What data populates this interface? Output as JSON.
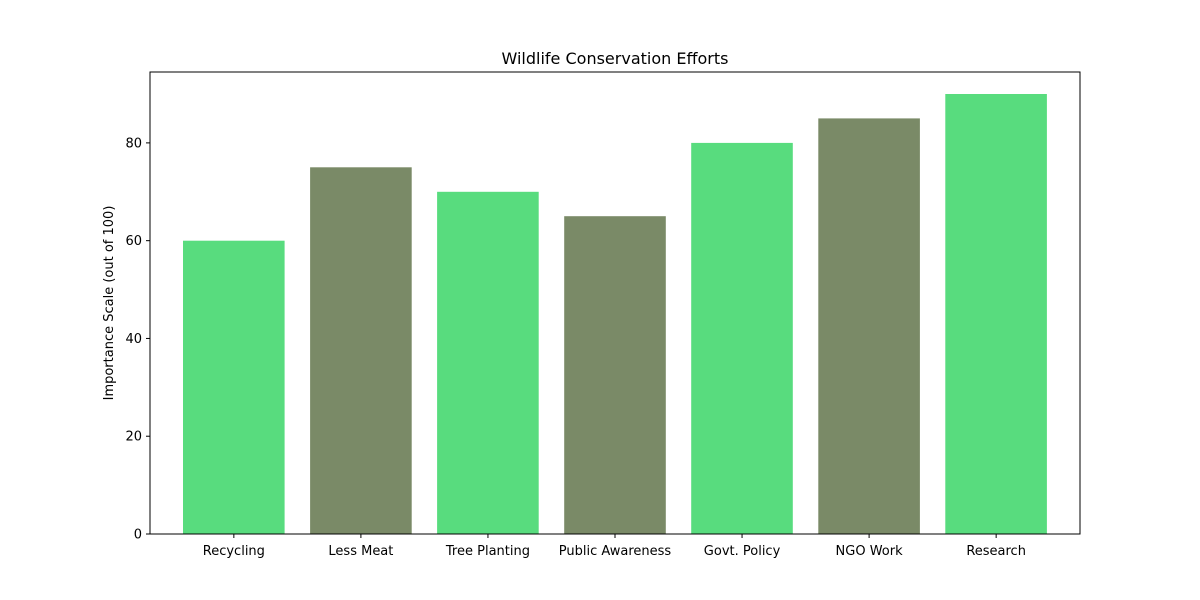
{
  "chart_data": {
    "type": "bar",
    "title": "Wildlife Conservation Efforts",
    "xlabel": "",
    "ylabel": "Importance Scale (out of 100)",
    "categories": [
      "Recycling",
      "Less Meat",
      "Tree Planting",
      "Public Awareness",
      "Govt. Policy",
      "NGO Work",
      "Research"
    ],
    "values": [
      60,
      75,
      70,
      65,
      80,
      85,
      90
    ],
    "colors": [
      "#58dc7e",
      "#7a8a67",
      "#58dc7e",
      "#7a8a67",
      "#58dc7e",
      "#7a8a67",
      "#58dc7e"
    ],
    "yticks": [
      0,
      20,
      40,
      60,
      80
    ],
    "ylim": [
      0,
      94.5
    ],
    "grid": false,
    "legend": "none"
  }
}
